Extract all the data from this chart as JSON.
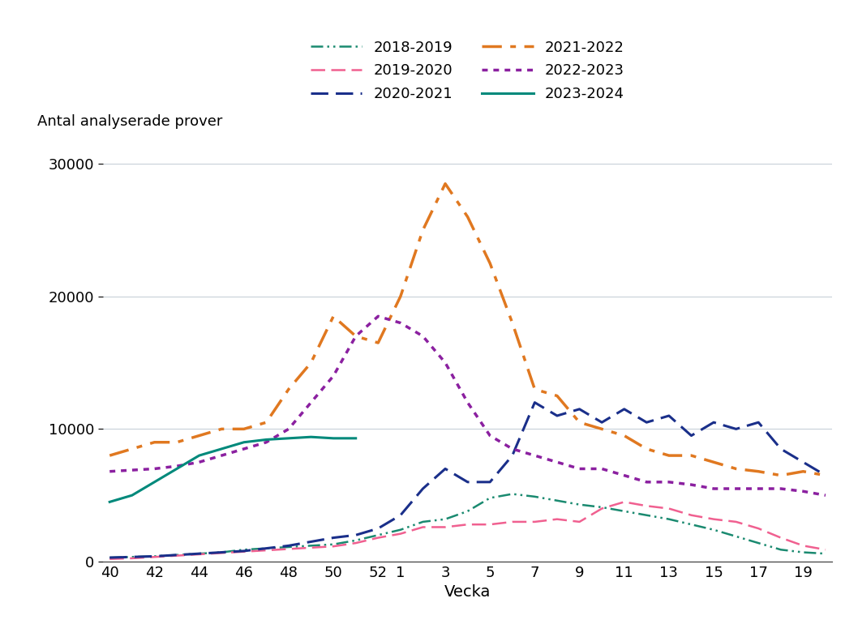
{
  "title": "",
  "ylabel": "Antal analyserade prover",
  "xlabel": "Vecka",
  "background_color": "#ffffff",
  "grid_color": "#c8d0d8",
  "ylim": [
    0,
    32000
  ],
  "yticks": [
    0,
    10000,
    20000,
    30000
  ],
  "series": [
    {
      "label": "2018-2019",
      "color": "#1a8a70",
      "linestyle": "dashdotdot",
      "linewidth": 1.8,
      "data_x": [
        40,
        41,
        42,
        43,
        44,
        45,
        46,
        47,
        48,
        49,
        50,
        51,
        52,
        1,
        2,
        3,
        4,
        5,
        6,
        7,
        8,
        9,
        10,
        11,
        12,
        13,
        14,
        15,
        16,
        17,
        18,
        19,
        20
      ],
      "data_y": [
        300,
        350,
        400,
        500,
        600,
        700,
        900,
        1000,
        1100,
        1200,
        1300,
        1600,
        2000,
        2400,
        3000,
        3200,
        3800,
        4800,
        5100,
        4900,
        4600,
        4300,
        4100,
        3800,
        3500,
        3200,
        2800,
        2400,
        1900,
        1400,
        900,
        700,
        600
      ]
    },
    {
      "label": "2019-2020",
      "color": "#f06090",
      "linestyle": "dashed",
      "linewidth": 1.8,
      "data_x": [
        40,
        41,
        42,
        43,
        44,
        45,
        46,
        47,
        48,
        49,
        50,
        51,
        52,
        1,
        2,
        3,
        4,
        5,
        6,
        7,
        8,
        9,
        10,
        11,
        12,
        13,
        14,
        15,
        16,
        17,
        18,
        19,
        20
      ],
      "data_y": [
        200,
        250,
        350,
        450,
        550,
        650,
        750,
        850,
        950,
        1050,
        1150,
        1400,
        1800,
        2100,
        2600,
        2600,
        2800,
        2800,
        3000,
        3000,
        3200,
        3000,
        4000,
        4500,
        4200,
        4000,
        3500,
        3200,
        3000,
        2500,
        1800,
        1200,
        900
      ]
    },
    {
      "label": "2020-2021",
      "color": "#1a2f8a",
      "linestyle": "dashed",
      "linewidth": 2.2,
      "data_x": [
        40,
        41,
        42,
        43,
        44,
        45,
        46,
        47,
        48,
        49,
        50,
        51,
        52,
        1,
        2,
        3,
        4,
        5,
        6,
        7,
        8,
        9,
        10,
        11,
        12,
        13,
        14,
        15,
        16,
        17,
        18,
        19,
        20
      ],
      "data_y": [
        300,
        350,
        400,
        500,
        600,
        700,
        800,
        1000,
        1200,
        1500,
        1800,
        2000,
        2500,
        3500,
        5500,
        7000,
        6000,
        6000,
        8000,
        12000,
        11000,
        11500,
        10500,
        11500,
        10500,
        11000,
        9500,
        10500,
        10000,
        10500,
        8500,
        7500,
        6500
      ]
    },
    {
      "label": "2021-2022",
      "color": "#e07820",
      "linestyle": "dashdot",
      "linewidth": 2.5,
      "data_x": [
        40,
        41,
        42,
        43,
        44,
        45,
        46,
        47,
        48,
        49,
        50,
        51,
        52,
        1,
        2,
        3,
        4,
        5,
        6,
        7,
        8,
        9,
        10,
        11,
        12,
        13,
        14,
        15,
        16,
        17,
        18,
        19,
        20
      ],
      "data_y": [
        8000,
        8500,
        9000,
        9000,
        9500,
        10000,
        10000,
        10500,
        13000,
        15000,
        18500,
        17000,
        16500,
        20000,
        25000,
        28500,
        26000,
        22500,
        18000,
        13000,
        12500,
        10500,
        10000,
        9500,
        8500,
        8000,
        8000,
        7500,
        7000,
        6800,
        6500,
        6800,
        6500
      ]
    },
    {
      "label": "2022-2023",
      "color": "#8b20a0",
      "linestyle": "dotted",
      "linewidth": 2.5,
      "data_x": [
        40,
        41,
        42,
        43,
        44,
        45,
        46,
        47,
        48,
        49,
        50,
        51,
        52,
        1,
        2,
        3,
        4,
        5,
        6,
        7,
        8,
        9,
        10,
        11,
        12,
        13,
        14,
        15,
        16,
        17,
        18,
        19,
        20
      ],
      "data_y": [
        6800,
        6900,
        7000,
        7200,
        7500,
        8000,
        8500,
        9000,
        10000,
        12000,
        14000,
        17000,
        18500,
        18000,
        17000,
        15000,
        12000,
        9500,
        8500,
        8000,
        7500,
        7000,
        7000,
        6500,
        6000,
        6000,
        5800,
        5500,
        5500,
        5500,
        5500,
        5300,
        5000
      ]
    },
    {
      "label": "2023-2024",
      "color": "#00897b",
      "linestyle": "solid",
      "linewidth": 2.2,
      "data_x": [
        40,
        41,
        42,
        43,
        44,
        45,
        46,
        47,
        48,
        49,
        50,
        51
      ],
      "data_y": [
        4500,
        5000,
        6000,
        7000,
        8000,
        8500,
        9000,
        9200,
        9300,
        9400,
        9300,
        9300
      ]
    }
  ]
}
